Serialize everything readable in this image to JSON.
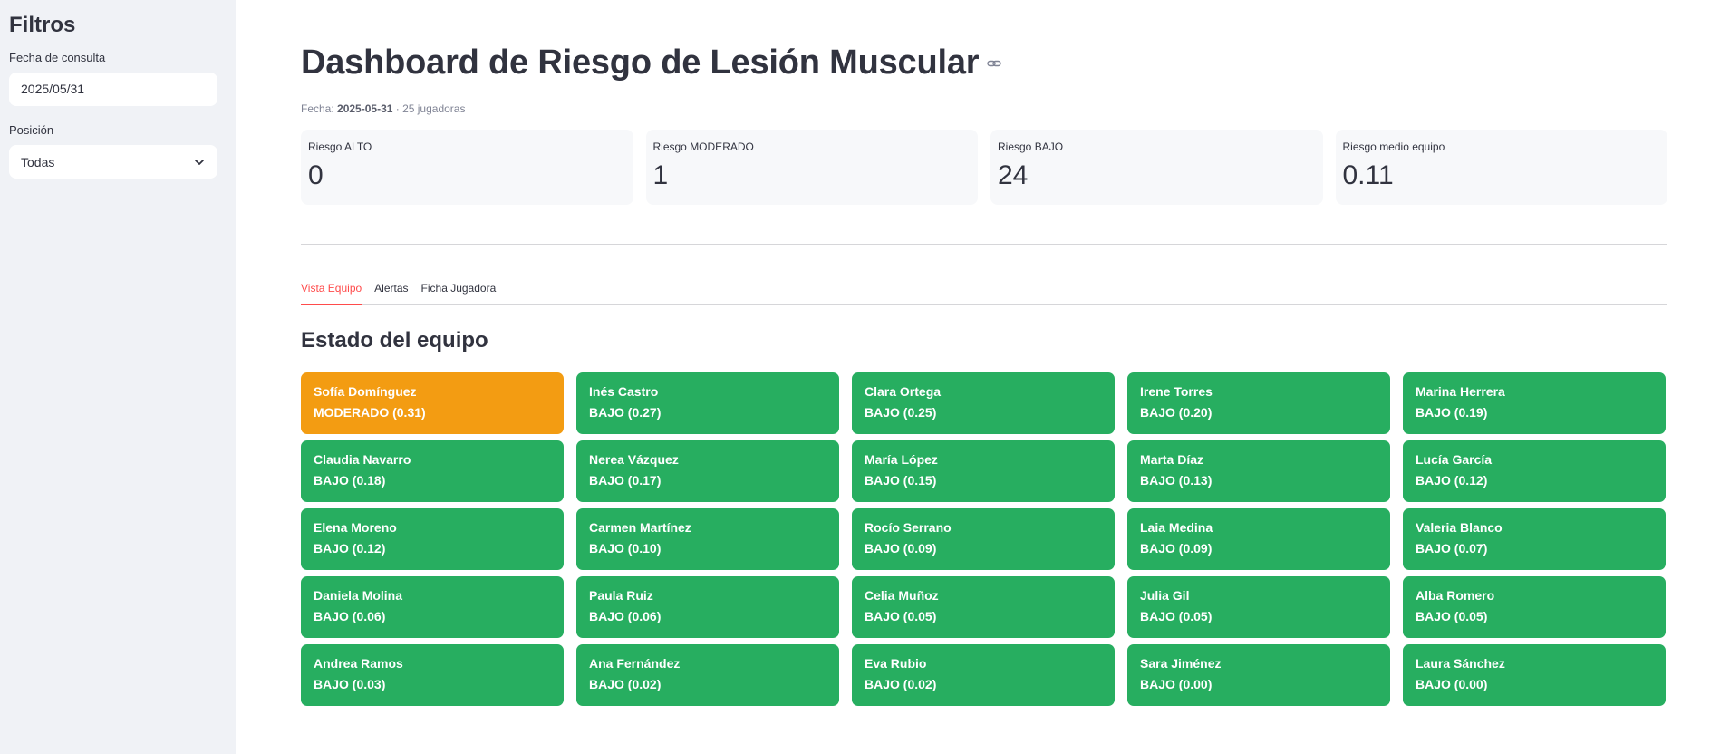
{
  "sidebar": {
    "title": "Filtros",
    "date_label": "Fecha de consulta",
    "date_value": "2025/05/31",
    "position_label": "Posición",
    "position_value": "Todas"
  },
  "header": {
    "title": "Dashboard de Riesgo de Lesión Muscular",
    "subtitle_prefix": "Fecha: ",
    "subtitle_date": "2025-05-31",
    "subtitle_suffix": " · 25 jugadoras"
  },
  "metrics": [
    {
      "label": "Riesgo ALTO",
      "value": "0"
    },
    {
      "label": "Riesgo MODERADO",
      "value": "1"
    },
    {
      "label": "Riesgo BAJO",
      "value": "24"
    },
    {
      "label": "Riesgo medio equipo",
      "value": "0.11"
    }
  ],
  "tabs": [
    {
      "label": "Vista Equipo",
      "active": true
    },
    {
      "label": "Alertas",
      "active": false
    },
    {
      "label": "Ficha Jugadora",
      "active": false
    }
  ],
  "section_title": "Estado del equipo",
  "colors": {
    "moderado": "#f39c12",
    "bajo": "#27ae60",
    "accent": "#ff4b4b"
  },
  "players": [
    {
      "name": "Sofía Domínguez",
      "risk": "MODERADO (0.31)",
      "level": "moderado"
    },
    {
      "name": "Inés Castro",
      "risk": "BAJO (0.27)",
      "level": "bajo"
    },
    {
      "name": "Clara Ortega",
      "risk": "BAJO (0.25)",
      "level": "bajo"
    },
    {
      "name": "Irene Torres",
      "risk": "BAJO (0.20)",
      "level": "bajo"
    },
    {
      "name": "Marina Herrera",
      "risk": "BAJO (0.19)",
      "level": "bajo"
    },
    {
      "name": "Claudia Navarro",
      "risk": "BAJO (0.18)",
      "level": "bajo"
    },
    {
      "name": "Nerea Vázquez",
      "risk": "BAJO (0.17)",
      "level": "bajo"
    },
    {
      "name": "María López",
      "risk": "BAJO (0.15)",
      "level": "bajo"
    },
    {
      "name": "Marta Díaz",
      "risk": "BAJO (0.13)",
      "level": "bajo"
    },
    {
      "name": "Lucía García",
      "risk": "BAJO (0.12)",
      "level": "bajo"
    },
    {
      "name": "Elena Moreno",
      "risk": "BAJO (0.12)",
      "level": "bajo"
    },
    {
      "name": "Carmen Martínez",
      "risk": "BAJO (0.10)",
      "level": "bajo"
    },
    {
      "name": "Rocío Serrano",
      "risk": "BAJO (0.09)",
      "level": "bajo"
    },
    {
      "name": "Laia Medina",
      "risk": "BAJO (0.09)",
      "level": "bajo"
    },
    {
      "name": "Valeria Blanco",
      "risk": "BAJO (0.07)",
      "level": "bajo"
    },
    {
      "name": "Daniela Molina",
      "risk": "BAJO (0.06)",
      "level": "bajo"
    },
    {
      "name": "Paula Ruiz",
      "risk": "BAJO (0.06)",
      "level": "bajo"
    },
    {
      "name": "Celia Muñoz",
      "risk": "BAJO (0.05)",
      "level": "bajo"
    },
    {
      "name": "Julia Gil",
      "risk": "BAJO (0.05)",
      "level": "bajo"
    },
    {
      "name": "Alba Romero",
      "risk": "BAJO (0.05)",
      "level": "bajo"
    },
    {
      "name": "Andrea Ramos",
      "risk": "BAJO (0.03)",
      "level": "bajo"
    },
    {
      "name": "Ana Fernández",
      "risk": "BAJO (0.02)",
      "level": "bajo"
    },
    {
      "name": "Eva Rubio",
      "risk": "BAJO (0.02)",
      "level": "bajo"
    },
    {
      "name": "Sara Jiménez",
      "risk": "BAJO (0.00)",
      "level": "bajo"
    },
    {
      "name": "Laura Sánchez",
      "risk": "BAJO (0.00)",
      "level": "bajo"
    }
  ]
}
